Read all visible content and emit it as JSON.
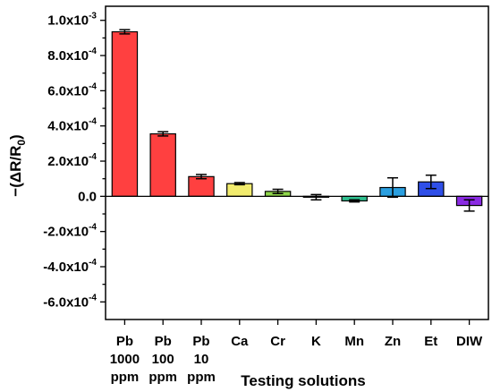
{
  "chart_data": {
    "type": "bar",
    "xlabel": "Testing solutions",
    "ylabel": "−(ΔR/R₀)",
    "ylim": [
      -0.0007,
      0.00108
    ],
    "yticks": [
      0.001,
      0.0008,
      0.0006,
      0.0004,
      0.0002,
      0.0,
      -0.0002,
      -0.0004,
      -0.0006
    ],
    "ytick_labels": [
      "1.0x10",
      "8.0x10",
      "6.0x10",
      "4.0x10",
      "2.0x10",
      "0.0",
      "-2.0x10",
      "-4.0x10",
      "-6.0x10"
    ],
    "ytick_exponents": [
      "-3",
      "-4",
      "-4",
      "-4",
      "-4",
      "",
      "-4",
      "-4",
      "-4"
    ],
    "categories": [
      {
        "lines": [
          "Pb",
          "1000",
          "ppm"
        ]
      },
      {
        "lines": [
          "Pb",
          "100",
          "ppm"
        ]
      },
      {
        "lines": [
          "Pb",
          "10",
          "ppm"
        ]
      },
      {
        "lines": [
          "Ca"
        ]
      },
      {
        "lines": [
          "Cr"
        ]
      },
      {
        "lines": [
          "K"
        ]
      },
      {
        "lines": [
          "Mn"
        ]
      },
      {
        "lines": [
          "Zn"
        ]
      },
      {
        "lines": [
          "Et"
        ]
      },
      {
        "lines": [
          "DIW"
        ]
      }
    ],
    "values": [
      0.000935,
      0.000355,
      0.000112,
      7.2e-05,
      2.8e-05,
      -5e-06,
      -2.6e-05,
      5e-05,
      8.2e-05,
      -5.2e-05
    ],
    "errors": [
      1.2e-05,
      1.2e-05,
      1.2e-05,
      6e-06,
      1.2e-05,
      1.5e-05,
      6e-06,
      5.5e-05,
      3.8e-05,
      3.2e-05
    ],
    "colors": [
      "#ff4040",
      "#ff4040",
      "#ff4040",
      "#f2ec6e",
      "#8fd64a",
      "#18a050",
      "#2fbf8f",
      "#2a9fe0",
      "#2f4fe8",
      "#8a2be2"
    ],
    "grid": false,
    "legend": "none"
  }
}
